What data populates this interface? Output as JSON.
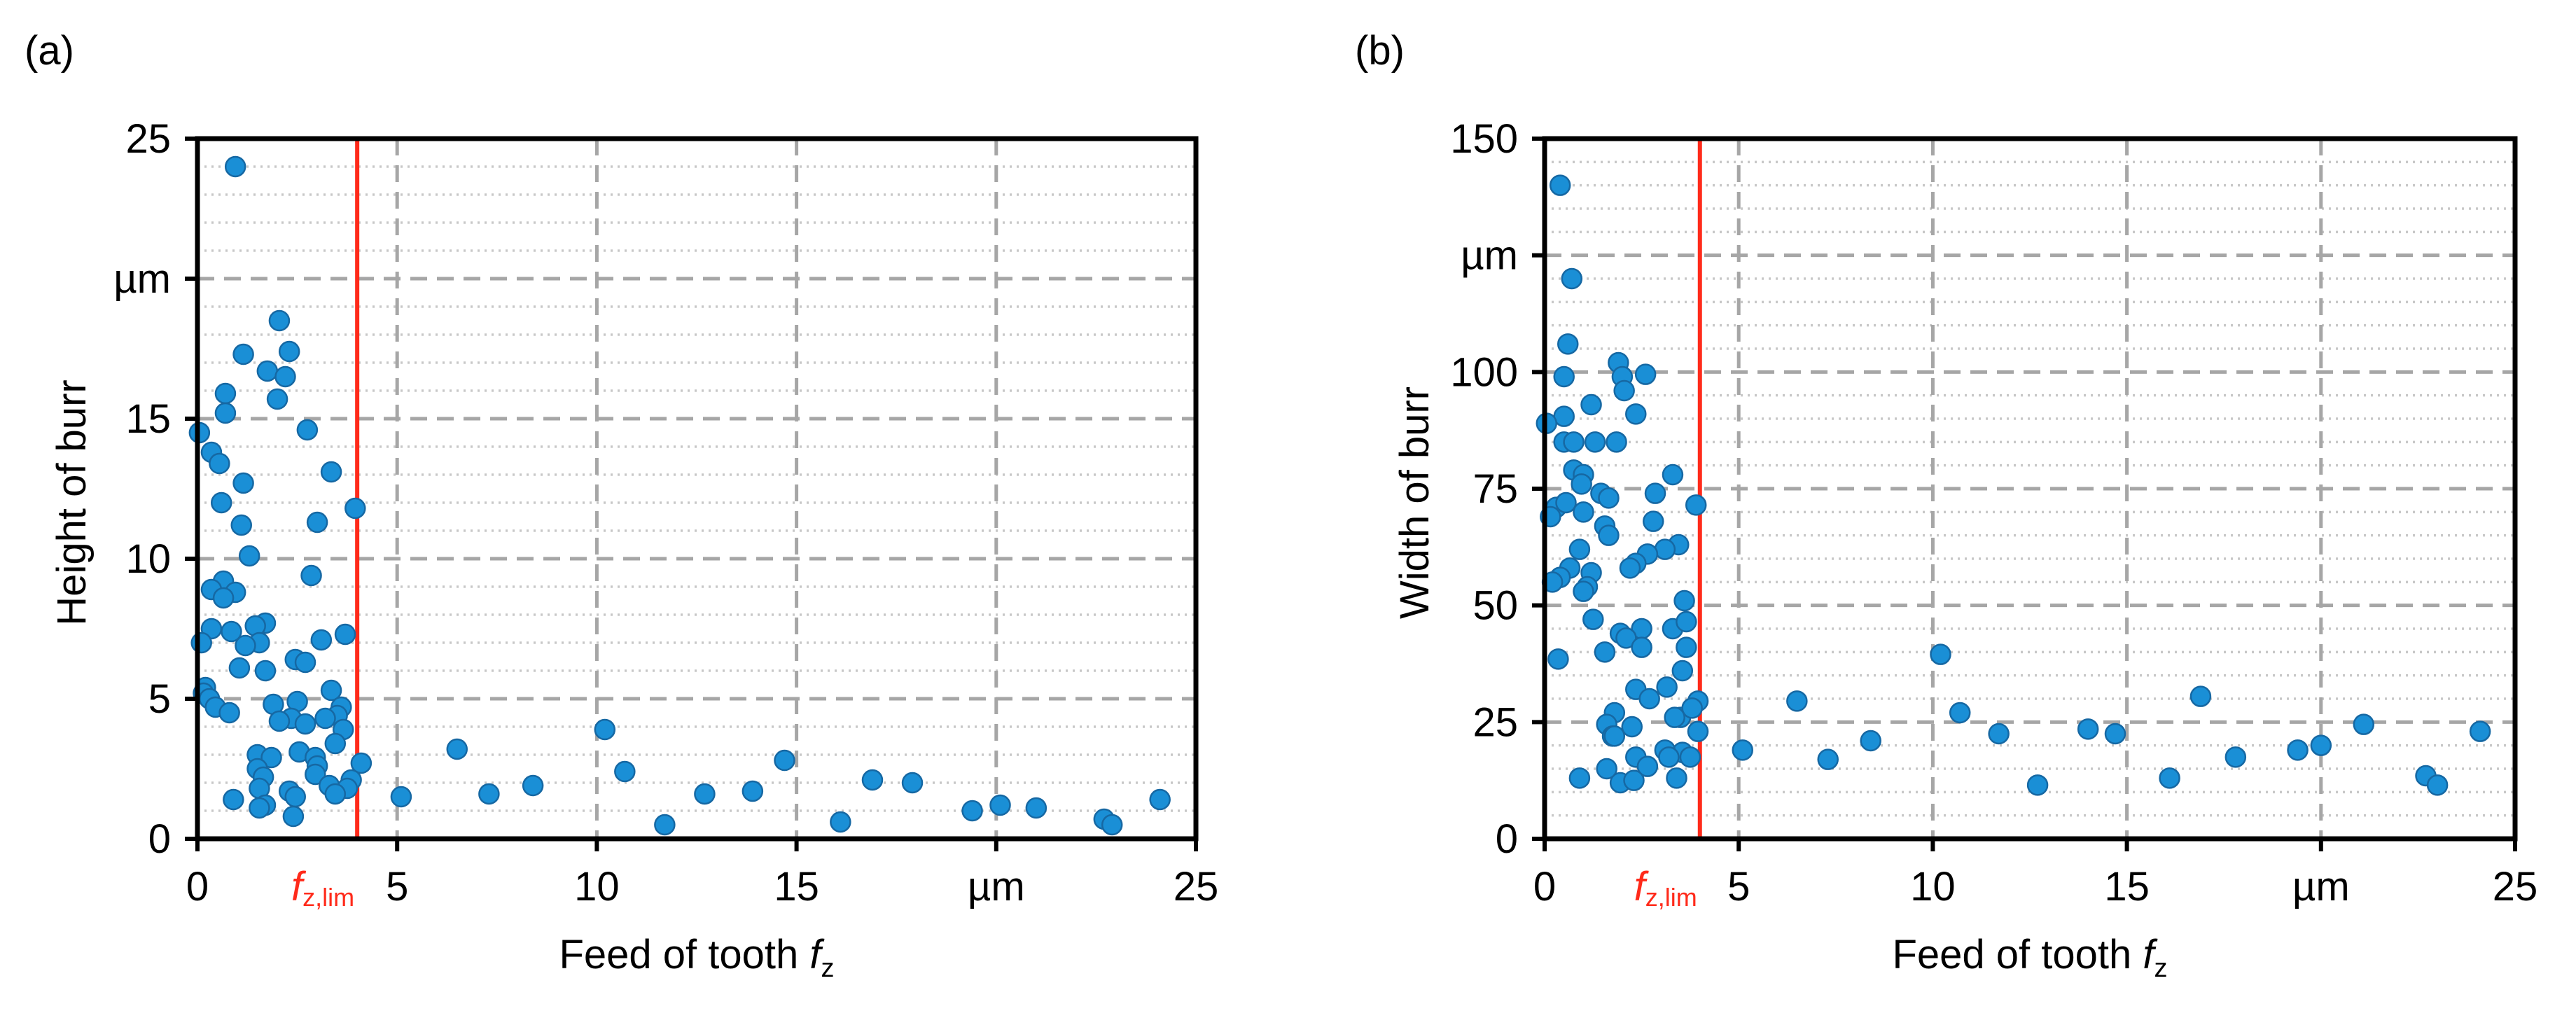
{
  "chart_data": [
    {
      "type": "scatter",
      "panel_label": "(a)",
      "xlabel": "Feed of tooth ",
      "xlabel_sub": "z",
      "xlabel_var": "f",
      "ylabel": "Height of burr",
      "xlim": [
        0,
        25
      ],
      "ylim": [
        0,
        25
      ],
      "x_ticks": [
        0,
        5,
        10,
        15,
        20,
        25
      ],
      "x_tick_labels": [
        "0",
        "5",
        "10",
        "15",
        "µm",
        "25"
      ],
      "y_ticks": [
        0,
        5,
        10,
        15,
        20,
        25
      ],
      "y_tick_labels": [
        "0",
        "5",
        "10",
        "15",
        "µm",
        "25"
      ],
      "y_minor_step": 1,
      "grid": true,
      "limit_line": {
        "x": 4,
        "label_main": "f",
        "label_sub": "z,lim",
        "color": "#ff2a1a"
      },
      "marker_color": "#1a8fd6",
      "x": [
        0.95,
        2.05,
        1.15,
        2.3,
        1.75,
        2.2,
        0.7,
        2.0,
        0.7,
        0.05,
        2.75,
        0.35,
        0.55,
        3.35,
        1.15,
        0.6,
        3.95,
        3.0,
        1.1,
        0.65,
        1.3,
        2.85,
        0.35,
        0.95,
        0.65,
        1.7,
        1.45,
        0.85,
        0.35,
        0.1,
        3.7,
        3.1,
        1.55,
        1.2,
        2.45,
        2.7,
        1.05,
        1.7,
        0.2,
        3.35,
        0.15,
        0.3,
        2.5,
        1.9,
        3.6,
        0.45,
        0.8,
        3.5,
        2.35,
        3.2,
        2.05,
        2.7,
        3.65,
        3.45,
        2.55,
        1.5,
        1.85,
        2.95,
        4.1,
        3.0,
        1.5,
        2.95,
        1.65,
        3.85,
        3.3,
        1.55,
        3.75,
        2.3,
        3.45,
        2.45,
        0.9,
        1.7,
        1.55,
        2.4,
        10.2,
        6.5,
        14.7,
        10.7,
        16.9,
        17.9,
        8.4,
        13.9,
        12.7,
        7.3,
        5.1,
        20.1,
        24.1,
        21.0,
        19.4,
        22.7,
        16.1,
        11.7,
        22.9
      ],
      "y": [
        24.0,
        18.5,
        17.3,
        17.4,
        16.7,
        16.5,
        15.9,
        15.7,
        15.2,
        14.5,
        14.6,
        13.8,
        13.4,
        13.1,
        12.7,
        12.0,
        11.8,
        11.3,
        11.2,
        9.2,
        10.1,
        9.4,
        8.9,
        8.8,
        8.6,
        7.7,
        7.6,
        7.4,
        7.5,
        7.0,
        7.3,
        7.1,
        7.0,
        6.9,
        6.4,
        6.3,
        6.1,
        6.0,
        5.4,
        5.3,
        5.2,
        5.0,
        4.9,
        4.8,
        4.7,
        4.7,
        4.5,
        4.4,
        4.3,
        4.3,
        4.2,
        4.1,
        3.9,
        3.4,
        3.1,
        3.0,
        2.9,
        2.9,
        2.7,
        2.6,
        2.5,
        2.3,
        2.2,
        2.1,
        1.9,
        1.8,
        1.8,
        1.7,
        1.6,
        1.5,
        1.4,
        1.2,
        1.1,
        0.8,
        3.9,
        3.2,
        2.8,
        2.4,
        2.1,
        2.0,
        1.9,
        1.7,
        1.6,
        1.6,
        1.5,
        1.2,
        1.4,
        1.1,
        1.0,
        0.7,
        0.6,
        0.5,
        0.5
      ]
    },
    {
      "type": "scatter",
      "panel_label": "(b)",
      "xlabel": "Feed of tooth ",
      "xlabel_sub": "z",
      "xlabel_var": "f",
      "ylabel": "Width of burr",
      "xlim": [
        0,
        25
      ],
      "ylim": [
        0,
        150
      ],
      "x_ticks": [
        0,
        5,
        10,
        15,
        20,
        25
      ],
      "x_tick_labels": [
        "0",
        "5",
        "10",
        "15",
        "µm",
        "25"
      ],
      "y_ticks": [
        0,
        25,
        50,
        75,
        100,
        125,
        150
      ],
      "y_tick_labels": [
        "0",
        "25",
        "50",
        "75",
        "100",
        "µm",
        "150"
      ],
      "y_minor_step": 5,
      "grid": true,
      "limit_line": {
        "x": 4,
        "label_main": "f",
        "label_sub": "z,lim",
        "color": "#ff2a1a"
      },
      "marker_color": "#1a8fd6",
      "x": [
        0.4,
        0.7,
        0.6,
        0.5,
        1.9,
        2.0,
        2.6,
        0.5,
        0.05,
        2.05,
        1.2,
        0.5,
        0.75,
        2.35,
        1.3,
        1.85,
        0.75,
        1.0,
        3.3,
        0.95,
        1.45,
        0.3,
        1.65,
        2.85,
        0.55,
        1.0,
        3.9,
        0.15,
        2.8,
        1.55,
        1.65,
        3.45,
        3.1,
        0.9,
        2.65,
        2.35,
        0.65,
        1.2,
        0.4,
        0.2,
        1.1,
        1.0,
        2.2,
        1.25,
        3.6,
        2.5,
        1.95,
        2.1,
        3.3,
        3.65,
        1.55,
        0.35,
        3.65,
        2.5,
        2.35,
        3.55,
        3.15,
        2.7,
        3.95,
        1.8,
        3.5,
        3.8,
        1.6,
        3.35,
        2.25,
        3.95,
        1.75,
        1.8,
        3.55,
        2.35,
        3.1,
        3.2,
        2.65,
        1.95,
        3.75,
        1.6,
        0.9,
        2.3,
        3.4,
        10.2,
        16.9,
        6.5,
        10.7,
        14.0,
        14.7,
        11.7,
        8.4,
        21.1,
        24.1,
        20.0,
        19.4,
        5.1,
        17.8,
        7.3,
        22.7,
        16.1,
        23.0,
        12.7
      ],
      "y": [
        140.0,
        120.0,
        106.0,
        99.0,
        102.0,
        99.0,
        99.5,
        90.5,
        89.0,
        96.0,
        93.0,
        85.0,
        85.0,
        91.0,
        85.0,
        85.0,
        79.0,
        78.0,
        78.0,
        76.0,
        74.0,
        71.0,
        73.0,
        74.0,
        72.0,
        70.0,
        71.5,
        69.0,
        68.0,
        67.0,
        65.0,
        63.0,
        62.0,
        62.0,
        61.0,
        59.0,
        58.0,
        57.0,
        56.0,
        55.0,
        54.0,
        53.0,
        58.0,
        47.0,
        51.0,
        45.0,
        44.0,
        43.0,
        45.0,
        46.5,
        40.0,
        38.5,
        41.0,
        41.0,
        32.0,
        36.0,
        32.5,
        30.0,
        29.5,
        27.0,
        26.0,
        28.0,
        24.5,
        26.0,
        24.0,
        23.0,
        22.0,
        22.0,
        18.5,
        17.5,
        19.0,
        17.5,
        15.5,
        12.0,
        17.5,
        15.0,
        13.0,
        12.5,
        13.0,
        39.5,
        30.5,
        29.5,
        27.0,
        23.5,
        22.5,
        22.5,
        21.0,
        24.5,
        23.0,
        20.0,
        19.0,
        19.0,
        17.5,
        17.0,
        13.5,
        13.0,
        11.5,
        11.5
      ]
    }
  ]
}
